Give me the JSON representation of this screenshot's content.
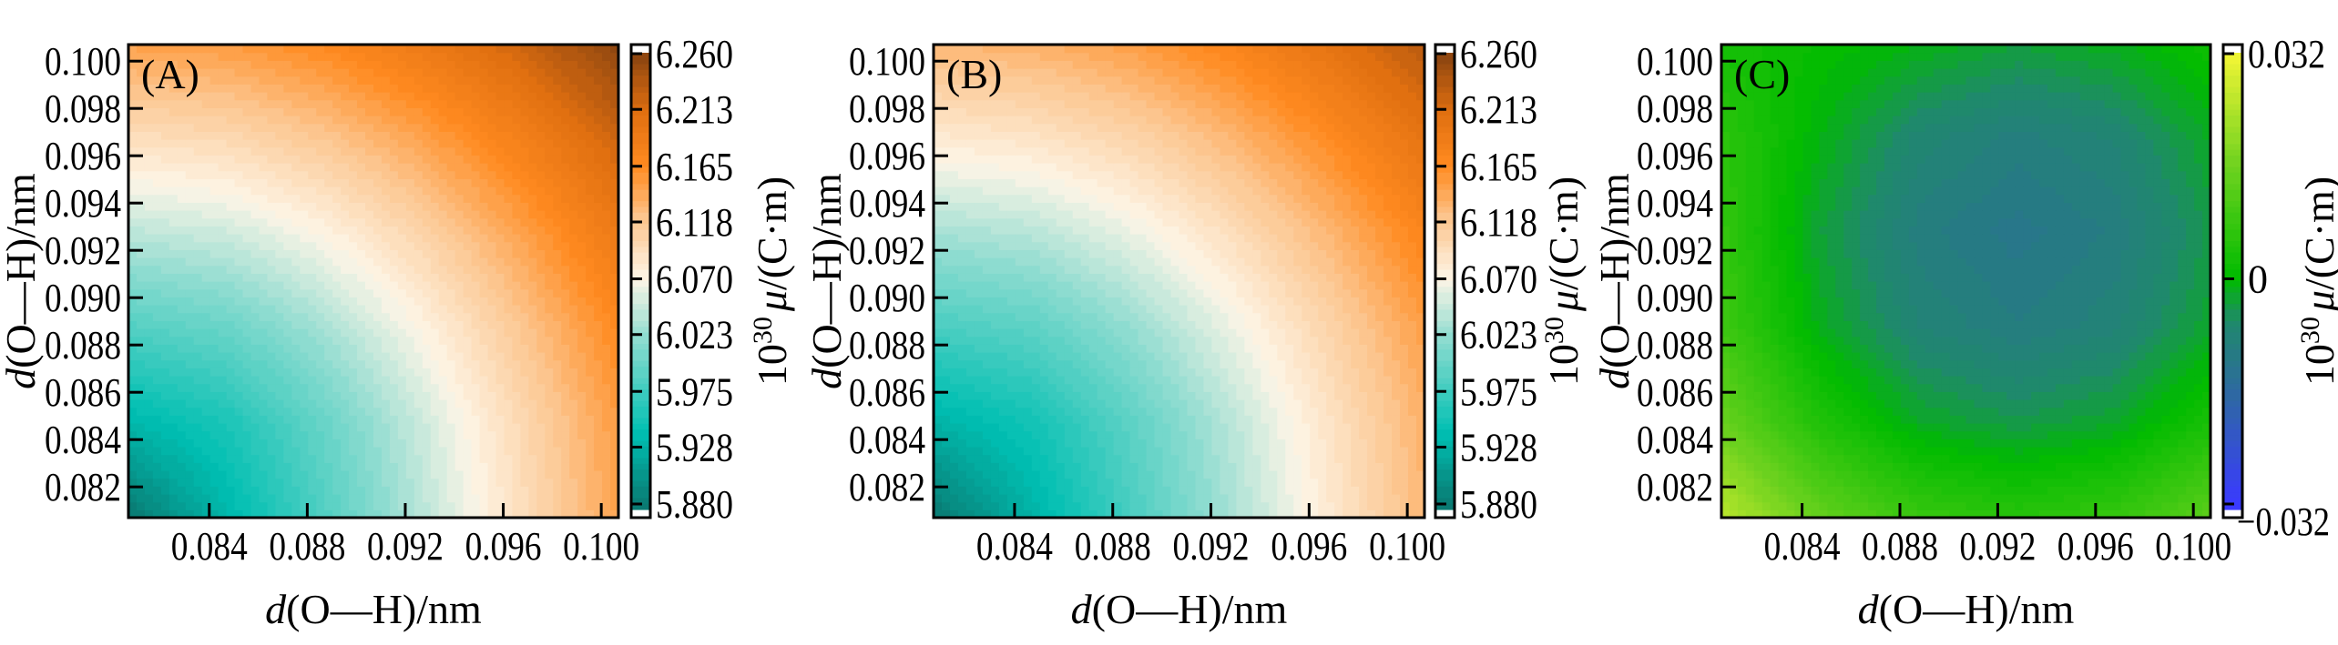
{
  "chart_data": [
    {
      "type": "heatmap",
      "panel_label": "(A)",
      "x": [
        0.0808,
        0.0848,
        0.0888,
        0.0928,
        0.0968,
        0.1008
      ],
      "y": [
        0.0808,
        0.0848,
        0.0888,
        0.0928,
        0.0968,
        0.1008
      ],
      "z": [
        [
          5.88,
          5.934,
          5.987,
          6.041,
          6.094,
          6.148
        ],
        [
          5.934,
          5.956,
          6.0,
          6.049,
          6.101,
          6.153
        ],
        [
          5.987,
          6.0,
          6.032,
          6.073,
          6.12,
          6.169
        ],
        [
          6.041,
          6.049,
          6.073,
          6.107,
          6.148,
          6.193
        ],
        [
          6.094,
          6.101,
          6.12,
          6.148,
          6.183,
          6.223
        ],
        [
          6.148,
          6.153,
          6.169,
          6.193,
          6.223,
          6.259
        ]
      ],
      "xlim": [
        0.0807,
        0.1007
      ],
      "ylim": [
        0.0807,
        0.1007
      ],
      "xlabel": {
        "var": "d",
        "rest": "(O—H)/nm"
      },
      "ylabel": {
        "var": "d",
        "rest": "(O—H)/nm"
      },
      "xticks": [
        0.084,
        0.088,
        0.092,
        0.096,
        0.1
      ],
      "xtick_labels": [
        "0.084",
        "0.088",
        "0.092",
        "0.096",
        "0.100"
      ],
      "yticks": [
        0.082,
        0.084,
        0.086,
        0.088,
        0.09,
        0.092,
        0.094,
        0.096,
        0.098,
        0.1
      ],
      "ytick_labels": [
        "0.082",
        "0.084",
        "0.086",
        "0.088",
        "0.090",
        "0.092",
        "0.094",
        "0.096",
        "0.098",
        "0.100"
      ],
      "colorbar": {
        "range": [
          5.88,
          6.26
        ],
        "ticks": [
          5.88,
          5.928,
          5.975,
          6.023,
          6.07,
          6.118,
          6.165,
          6.213,
          6.26
        ],
        "tick_labels": [
          "5.880",
          "5.928",
          "5.975",
          "6.023",
          "6.070",
          "6.118",
          "6.165",
          "6.213",
          "6.260"
        ],
        "label": {
          "base": "10",
          "exp": "30",
          "sym": "μ",
          "unit": "/(C·m)"
        },
        "colormap": [
          [
            5.88,
            "#0a7a72"
          ],
          [
            5.94,
            "#00bfb2"
          ],
          [
            6.02,
            "#8fdcd0"
          ],
          [
            6.07,
            "#fdf5e6"
          ],
          [
            6.12,
            "#fcc690"
          ],
          [
            6.165,
            "#ff8a20"
          ],
          [
            6.21,
            "#e06f10"
          ],
          [
            6.26,
            "#8a4410"
          ]
        ],
        "extend": "both"
      }
    },
    {
      "type": "heatmap",
      "panel_label": "(B)",
      "x": [
        0.0808,
        0.0848,
        0.0888,
        0.0928,
        0.0968,
        0.1008
      ],
      "y": [
        0.0808,
        0.0848,
        0.0888,
        0.0928,
        0.0968,
        0.1008
      ],
      "z": [
        [
          5.88,
          5.93,
          5.981,
          6.031,
          6.082,
          6.132
        ],
        [
          5.93,
          5.951,
          5.993,
          6.039,
          6.088,
          6.137
        ],
        [
          5.981,
          5.993,
          6.023,
          6.062,
          6.105,
          6.151
        ],
        [
          6.031,
          6.039,
          6.062,
          6.094,
          6.132,
          6.174
        ],
        [
          6.082,
          6.088,
          6.105,
          6.132,
          6.165,
          6.203
        ],
        [
          6.132,
          6.137,
          6.151,
          6.174,
          6.203,
          6.236
        ]
      ],
      "xlim": [
        0.0807,
        0.1007
      ],
      "ylim": [
        0.0807,
        0.1007
      ],
      "xlabel": {
        "var": "d",
        "rest": "(O—H)/nm"
      },
      "ylabel": {
        "var": "d",
        "rest": "(O—H)/nm"
      },
      "xticks": [
        0.084,
        0.088,
        0.092,
        0.096,
        0.1
      ],
      "xtick_labels": [
        "0.084",
        "0.088",
        "0.092",
        "0.096",
        "0.100"
      ],
      "yticks": [
        0.082,
        0.084,
        0.086,
        0.088,
        0.09,
        0.092,
        0.094,
        0.096,
        0.098,
        0.1
      ],
      "ytick_labels": [
        "0.082",
        "0.084",
        "0.086",
        "0.088",
        "0.090",
        "0.092",
        "0.094",
        "0.096",
        "0.098",
        "0.100"
      ],
      "colorbar": {
        "range": [
          5.88,
          6.26
        ],
        "ticks": [
          5.88,
          5.928,
          5.975,
          6.023,
          6.07,
          6.118,
          6.165,
          6.213,
          6.26
        ],
        "tick_labels": [
          "5.880",
          "5.928",
          "5.975",
          "6.023",
          "6.070",
          "6.118",
          "6.165",
          "6.213",
          "6.260"
        ],
        "label": {
          "base": "10",
          "exp": "30",
          "sym": "μ",
          "unit": "/(C·m)"
        },
        "colormap": [
          [
            5.88,
            "#0a7a72"
          ],
          [
            5.94,
            "#00bfb2"
          ],
          [
            6.02,
            "#8fdcd0"
          ],
          [
            6.07,
            "#fdf5e6"
          ],
          [
            6.12,
            "#fcc690"
          ],
          [
            6.165,
            "#ff8a20"
          ],
          [
            6.21,
            "#e06f10"
          ],
          [
            6.26,
            "#8a4410"
          ]
        ],
        "extend": "both"
      }
    },
    {
      "type": "heatmap",
      "panel_label": "(C)",
      "x": [
        0.0808,
        0.0848,
        0.0888,
        0.0928,
        0.0968,
        0.1008
      ],
      "y": [
        0.0808,
        0.0848,
        0.0888,
        0.0928,
        0.0968,
        0.1008
      ],
      "z": [
        [
          0.0246,
          0.0141,
          0.0078,
          0.0055,
          0.0074,
          0.0133
        ],
        [
          0.0146,
          0.0042,
          -0.0022,
          -0.0044,
          -0.0026,
          0.0034
        ],
        [
          0.0088,
          -0.0017,
          -0.008,
          -0.0102,
          -0.0084,
          -0.0025
        ],
        [
          0.0071,
          -0.0034,
          -0.0098,
          -0.012,
          -0.0101,
          -0.0042
        ],
        [
          0.006,
          -0.0011,
          -0.0074,
          -0.0096,
          -0.0078,
          -0.0019
        ],
        [
          0.003,
          0.001,
          -0.001,
          -0.0032,
          -0.0014,
          0.002
        ]
      ],
      "xlim": [
        0.0807,
        0.1007
      ],
      "ylim": [
        0.0807,
        0.1007
      ],
      "xlabel": {
        "var": "d",
        "rest": "(O—H)/nm"
      },
      "ylabel": {
        "var": "d",
        "rest": "(O—H)/nm"
      },
      "xticks": [
        0.084,
        0.088,
        0.092,
        0.096,
        0.1
      ],
      "xtick_labels": [
        "0.084",
        "0.088",
        "0.092",
        "0.096",
        "0.100"
      ],
      "yticks": [
        0.082,
        0.084,
        0.086,
        0.088,
        0.09,
        0.092,
        0.094,
        0.096,
        0.098,
        0.1
      ],
      "ytick_labels": [
        "0.082",
        "0.084",
        "0.086",
        "0.088",
        "0.090",
        "0.092",
        "0.094",
        "0.096",
        "0.098",
        "0.100"
      ],
      "colorbar": {
        "range": [
          -0.032,
          0.032
        ],
        "ticks": [
          -0.032,
          0,
          0.032
        ],
        "tick_labels": [
          "−0.032",
          "0",
          "0.032"
        ],
        "label": {
          "base": "10",
          "exp": "30",
          "sym": "μ",
          "unit": "/(C·m)"
        },
        "colormap": [
          [
            -0.032,
            "#3a3aff"
          ],
          [
            -0.016,
            "#2e6aa0"
          ],
          [
            -0.006,
            "#1f8a6a"
          ],
          [
            0,
            "#00bb00"
          ],
          [
            0.016,
            "#6fd21f"
          ],
          [
            0.032,
            "#f2f535"
          ]
        ],
        "extend": "both"
      }
    }
  ]
}
